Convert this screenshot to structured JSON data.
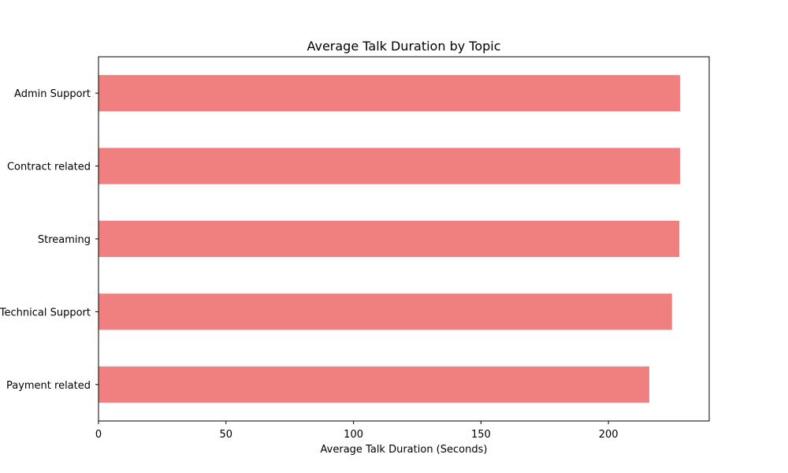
{
  "chart_data": {
    "type": "bar",
    "orientation": "horizontal",
    "title": "Average Talk Duration by Topic",
    "xlabel": "Average Talk Duration (Seconds)",
    "ylabel": "",
    "categories": [
      "Admin Support",
      "Contract related",
      "Streaming",
      "Technical Support",
      "Payment related"
    ],
    "values": [
      228.1,
      228.1,
      227.8,
      224.9,
      216.0
    ],
    "xlim": [
      0,
      239.5
    ],
    "xticks": [
      0,
      50,
      100,
      150,
      200
    ],
    "bar_color": "#f08080",
    "grid": false,
    "legend": "none"
  }
}
